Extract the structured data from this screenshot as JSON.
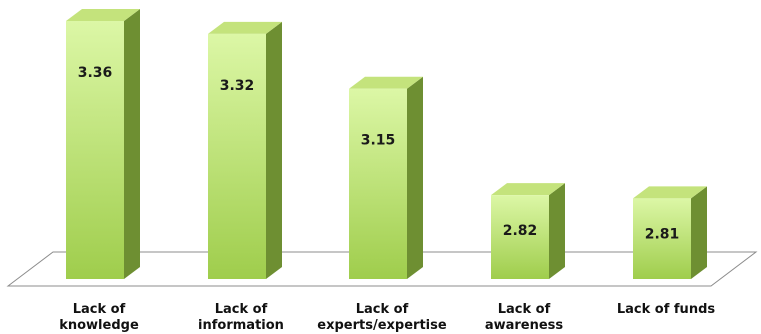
{
  "chart_data": {
    "type": "bar",
    "style": "3d-column",
    "categories": [
      [
        "Lack of",
        "knowledge"
      ],
      [
        "Lack of",
        "information"
      ],
      [
        "Lack of",
        "experts/expertise"
      ],
      [
        "Lack of",
        "awareness"
      ],
      [
        "Lack of funds"
      ]
    ],
    "values": [
      3.36,
      3.32,
      3.15,
      2.82,
      2.81
    ],
    "data_labels": [
      "3.36",
      "3.32",
      "3.15",
      "2.82",
      "2.81"
    ],
    "title": "",
    "xlabel": "",
    "ylabel": "",
    "ylim": [
      2.6,
      3.4
    ],
    "grid": false,
    "legend": "none",
    "colors": {
      "bar_front_light": "#dcf7a6",
      "bar_front_dark": "#9fcd4c",
      "bar_side": "#6e8f32",
      "bar_top": "#c4e37c",
      "floor": "#ffffff",
      "floor_stroke": "#8c8c8c"
    }
  }
}
